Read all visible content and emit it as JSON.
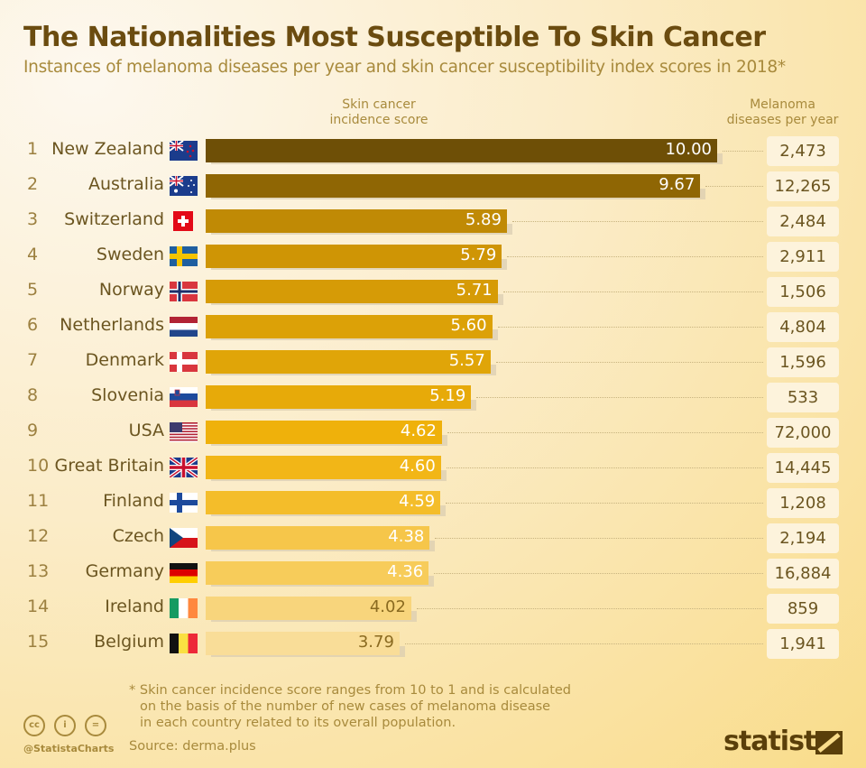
{
  "title": "The Nationalities Most Susceptible To Skin Cancer",
  "subtitle": "Instances of melanoma diseases per year and skin cancer susceptibility index scores in 2018*",
  "chart_data": {
    "type": "bar",
    "orientation": "horizontal",
    "title": "The Nationalities Most Susceptible To Skin Cancer",
    "score_header": "Skin cancer incidence score",
    "cases_header": "Melanoma diseases per year",
    "xlim": [
      0,
      10
    ],
    "rows": [
      {
        "rank": "1",
        "country": "New Zealand",
        "flag": "nz",
        "score": 10.0,
        "score_label": "10.00",
        "cases": "2,473",
        "color": "#6e4f06"
      },
      {
        "rank": "2",
        "country": "Australia",
        "flag": "au",
        "score": 9.67,
        "score_label": "9.67",
        "cases": "12,265",
        "color": "#8f6604"
      },
      {
        "rank": "3",
        "country": "Switzerland",
        "flag": "ch",
        "score": 5.89,
        "score_label": "5.89",
        "cases": "2,484",
        "color": "#c08a05"
      },
      {
        "rank": "4",
        "country": "Sweden",
        "flag": "se",
        "score": 5.79,
        "score_label": "5.79",
        "cases": "2,911",
        "color": "#cf9505"
      },
      {
        "rank": "5",
        "country": "Norway",
        "flag": "no",
        "score": 5.71,
        "score_label": "5.71",
        "cases": "1,506",
        "color": "#d69b06"
      },
      {
        "rank": "6",
        "country": "Netherlands",
        "flag": "nl",
        "score": 5.6,
        "score_label": "5.60",
        "cases": "4,804",
        "color": "#dca107"
      },
      {
        "rank": "7",
        "country": "Denmark",
        "flag": "dk",
        "score": 5.57,
        "score_label": "5.57",
        "cases": "1,596",
        "color": "#e0a508"
      },
      {
        "rank": "8",
        "country": "Slovenia",
        "flag": "si",
        "score": 5.19,
        "score_label": "5.19",
        "cases": "533",
        "color": "#e7aa09"
      },
      {
        "rank": "9",
        "country": "USA",
        "flag": "us",
        "score": 4.62,
        "score_label": "4.62",
        "cases": "72,000",
        "color": "#efb10b"
      },
      {
        "rank": "10",
        "country": "Great Britain",
        "flag": "gb",
        "score": 4.6,
        "score_label": "4.60",
        "cases": "14,445",
        "color": "#f2b617"
      },
      {
        "rank": "11",
        "country": "Finland",
        "flag": "fi",
        "score": 4.59,
        "score_label": "4.59",
        "cases": "1,208",
        "color": "#f4bd2a"
      },
      {
        "rank": "12",
        "country": "Czech",
        "flag": "cz",
        "score": 4.38,
        "score_label": "4.38",
        "cases": "2,194",
        "color": "#f6c64a"
      },
      {
        "rank": "13",
        "country": "Germany",
        "flag": "de",
        "score": 4.36,
        "score_label": "4.36",
        "cases": "16,884",
        "color": "#f7cc5a"
      },
      {
        "rank": "14",
        "country": "Ireland",
        "flag": "ie",
        "score": 4.02,
        "score_label": "4.02",
        "cases": "859",
        "color": "#f8d57c"
      },
      {
        "rank": "15",
        "country": "Belgium",
        "flag": "be",
        "score": 3.79,
        "score_label": "3.79",
        "cases": "1,941",
        "color": "#f9dd98"
      }
    ]
  },
  "footnote": [
    "* Skin cancer incidence score ranges from 10 to 1 and is calculated",
    "on the basis of the number of new cases of melanoma disease",
    "in each country related to its overall population."
  ],
  "source": "Source: derma.plus",
  "handle": "@StatistaCharts",
  "cc_icons": [
    "cc",
    "i",
    "="
  ],
  "logo": "statista"
}
